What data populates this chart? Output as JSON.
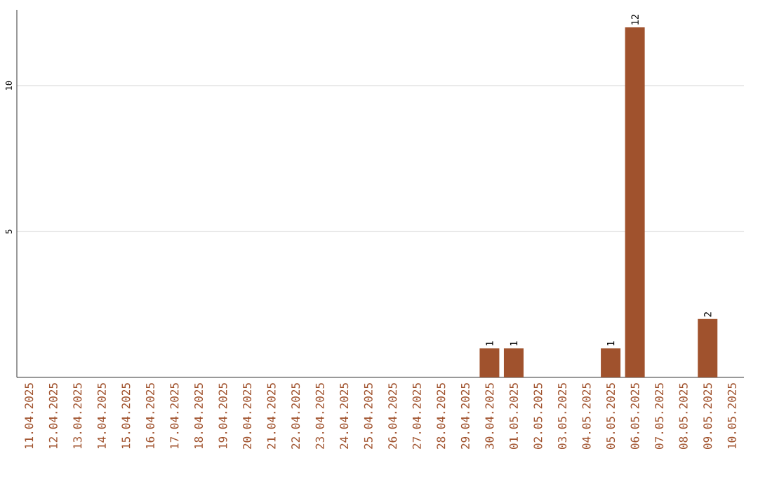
{
  "chart_data": {
    "type": "bar",
    "categories": [
      "11.04.2025",
      "12.04.2025",
      "13.04.2025",
      "14.04.2025",
      "15.04.2025",
      "16.04.2025",
      "17.04.2025",
      "18.04.2025",
      "19.04.2025",
      "20.04.2025",
      "21.04.2025",
      "22.04.2025",
      "23.04.2025",
      "24.04.2025",
      "25.04.2025",
      "26.04.2025",
      "27.04.2025",
      "28.04.2025",
      "29.04.2025",
      "30.04.2025",
      "01.05.2025",
      "02.05.2025",
      "03.05.2025",
      "04.05.2025",
      "05.05.2025",
      "06.05.2025",
      "07.05.2025",
      "08.05.2025",
      "09.05.2025",
      "10.05.2025"
    ],
    "values": [
      0,
      0,
      0,
      0,
      0,
      0,
      0,
      0,
      0,
      0,
      0,
      0,
      0,
      0,
      0,
      0,
      0,
      0,
      0,
      1,
      1,
      0,
      0,
      0,
      1,
      12,
      0,
      0,
      2,
      0
    ],
    "value_labels": [
      null,
      null,
      null,
      null,
      null,
      null,
      null,
      null,
      null,
      null,
      null,
      null,
      null,
      null,
      null,
      null,
      null,
      null,
      null,
      "1",
      "1",
      null,
      null,
      null,
      "1",
      "12",
      null,
      null,
      "2",
      null
    ],
    "color": "#a0522d",
    "ylim": [
      0,
      12.6
    ],
    "yticks": [
      5,
      10
    ],
    "grid": "y"
  }
}
